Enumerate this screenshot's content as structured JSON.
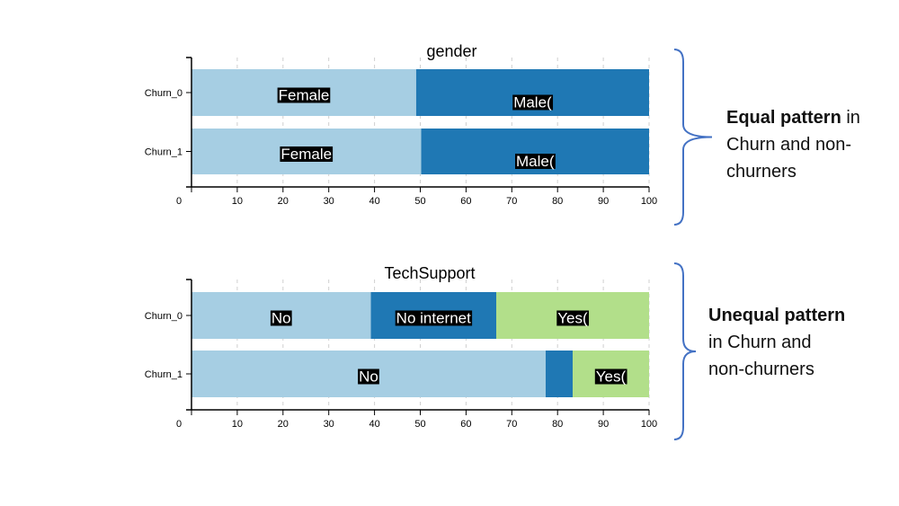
{
  "chart_data": [
    {
      "type": "bar",
      "stacked": true,
      "orientation": "horizontal",
      "title": "gender",
      "categories": [
        "Churn_0",
        "Churn_1"
      ],
      "series": [
        {
          "name": "Female",
          "values": [
            49.1,
            50.2
          ],
          "color": "#a6cee3"
        },
        {
          "name": "Male",
          "values": [
            50.9,
            49.8
          ],
          "color": "#1f78b4"
        }
      ],
      "bar_labels": [
        [
          "Female",
          "Male("
        ],
        [
          "Female",
          "Male("
        ]
      ],
      "xlim": [
        0,
        100
      ],
      "xticks": [
        0,
        10,
        20,
        30,
        40,
        50,
        60,
        70,
        80,
        90,
        100
      ],
      "grid": "vertical-dashed"
    },
    {
      "type": "bar",
      "stacked": true,
      "orientation": "horizontal",
      "title": "TechSupport",
      "categories": [
        "Churn_0",
        "Churn_1"
      ],
      "series": [
        {
          "name": "No",
          "values": [
            39.2,
            77.4
          ],
          "color": "#a6cee3"
        },
        {
          "name": "No internet",
          "values": [
            27.4,
            5.9
          ],
          "color": "#1f78b4"
        },
        {
          "name": "Yes",
          "values": [
            33.4,
            16.7
          ],
          "color": "#b2df8a"
        }
      ],
      "bar_labels": [
        [
          "No",
          "No internet",
          "Yes("
        ],
        [
          "No",
          "",
          "Yes("
        ]
      ],
      "xlim": [
        0,
        100
      ],
      "xticks": [
        0,
        10,
        20,
        30,
        40,
        50,
        60,
        70,
        80,
        90,
        100
      ],
      "grid": "vertical-dashed"
    }
  ],
  "annotations": {
    "top": {
      "bold": "Equal pattern",
      "rest_line1": " in",
      "line2": "Churn and non-",
      "line3": "churners"
    },
    "bottom": {
      "bold": "Unequal pattern",
      "line2": "in Churn and",
      "line3": "non-churners"
    },
    "brace_color": "#4472c4"
  }
}
